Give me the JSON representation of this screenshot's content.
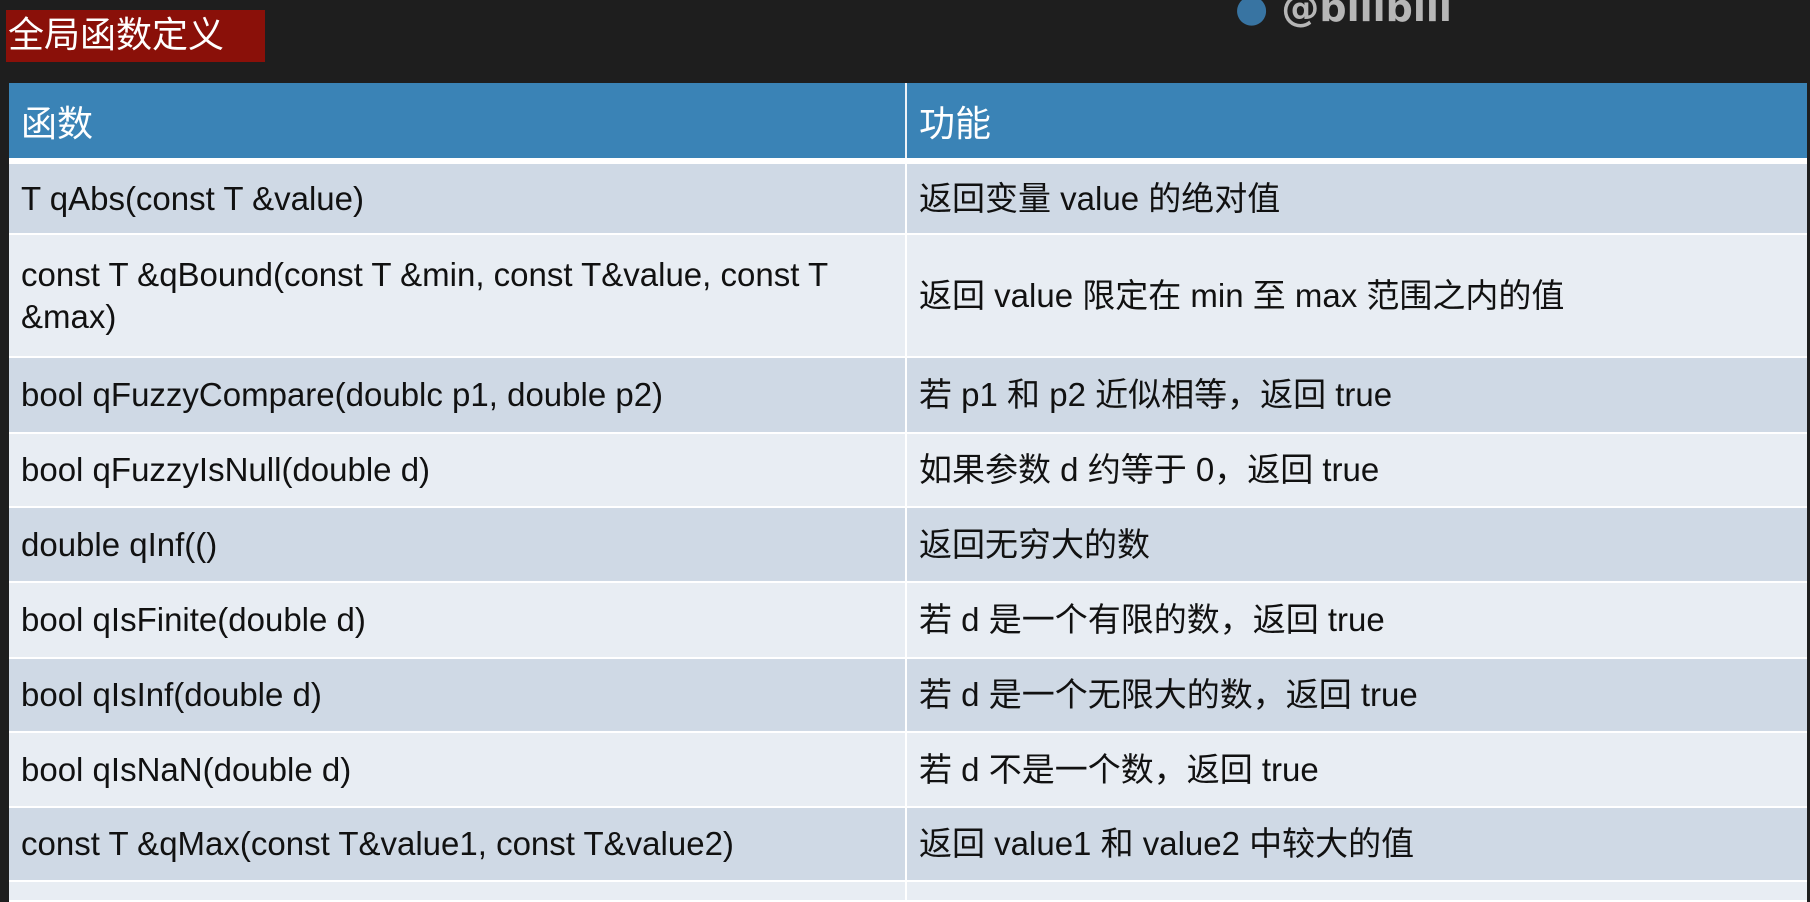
{
  "slide": {
    "title": "全局函数定义",
    "watermark": "@bilibili"
  },
  "table": {
    "headers": [
      "函数",
      "功能"
    ],
    "rows": [
      {
        "func": "T qAbs(const T &value)",
        "desc": "返回变量 value 的绝对值"
      },
      {
        "func": "const T &qBound(const T &min, const T&value, const T &max)",
        "desc": "返回 value 限定在 min 至 max 范围之内的值"
      },
      {
        "func": "bool qFuzzyCompare(doublc p1, double p2)",
        "desc": "若 p1 和 p2 近似相等，返回 true"
      },
      {
        "func": "bool qFuzzyIsNull(double d)",
        "desc": "如果参数 d 约等于 0，返回 true"
      },
      {
        "func": "double qInf(()",
        "desc": "返回无穷大的数"
      },
      {
        "func": "bool qIsFinite(double d)",
        "desc": "若 d 是一个有限的数，返回 true"
      },
      {
        "func": "bool qIsInf(double d)",
        "desc": "若 d 是一个无限大的数，返回 true"
      },
      {
        "func": "bool qIsNaN(double d)",
        "desc": "若 d 不是一个数，返回 true"
      },
      {
        "func": "const T &qMax(const T&value1, const T&value2)",
        "desc": "返回 value1 和 value2 中较大的值"
      }
    ]
  },
  "colors": {
    "header": "#3a83b6",
    "row_odd": "#cfd9e5",
    "row_even": "#e8edf3",
    "title_bg": "#8a1009",
    "background": "#1e1e1e"
  }
}
